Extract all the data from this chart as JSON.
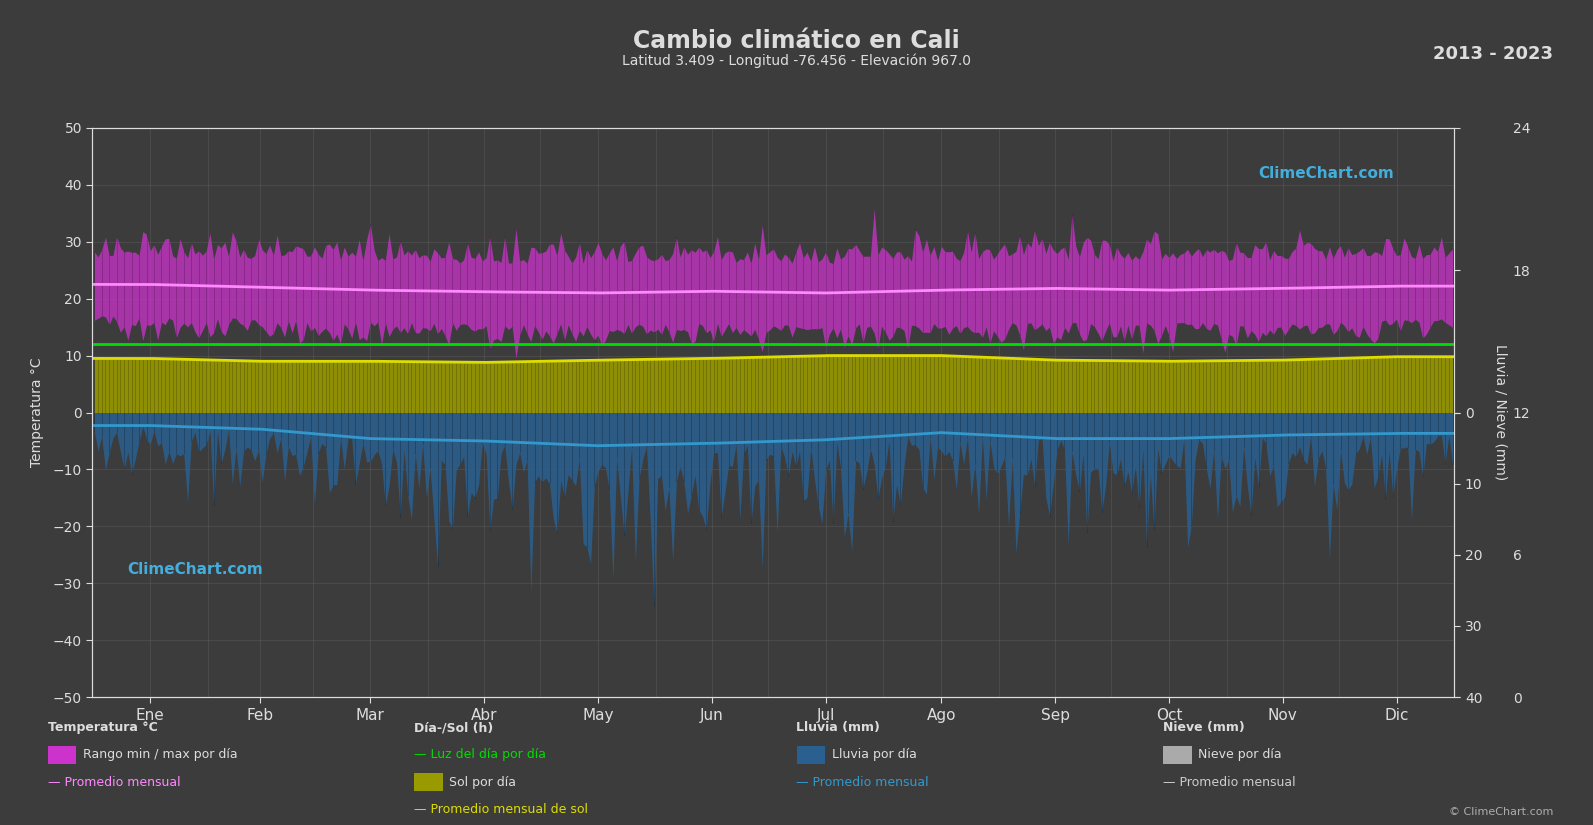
{
  "title": "Cambio climático en Cali",
  "subtitle": "Latitud 3.409 - Longitud -76.456 - Elevación 967.0",
  "year_range": "2013 - 2023",
  "bg_color": "#3c3c3c",
  "left_ylim": [
    -50,
    50
  ],
  "months": [
    "Ene",
    "Feb",
    "Mar",
    "Abr",
    "May",
    "Jun",
    "Jul",
    "Ago",
    "Sep",
    "Oct",
    "Nov",
    "Dic"
  ],
  "temp_avg_monthly": [
    22.5,
    22.0,
    21.5,
    21.2,
    21.0,
    21.3,
    21.0,
    21.5,
    21.8,
    21.5,
    21.8,
    22.2
  ],
  "temp_max_daily_std": 2.5,
  "temp_min_daily_std": 2.0,
  "temp_max_monthly": [
    27.0,
    26.8,
    26.5,
    26.2,
    26.0,
    26.2,
    26.0,
    26.5,
    26.8,
    26.5,
    26.8,
    27.0
  ],
  "temp_min_monthly": [
    17.0,
    16.5,
    16.0,
    15.8,
    15.5,
    15.8,
    15.5,
    15.8,
    16.0,
    15.8,
    16.0,
    16.5
  ],
  "daylight_monthly": [
    12.1,
    12.1,
    12.1,
    12.1,
    12.1,
    12.1,
    12.1,
    12.1,
    12.1,
    12.1,
    12.1,
    12.1
  ],
  "sun_monthly": [
    9.5,
    9.0,
    9.0,
    8.8,
    9.2,
    9.5,
    10.0,
    10.0,
    9.2,
    9.0,
    9.2,
    9.8
  ],
  "rain_mm_monthly": [
    55,
    70,
    110,
    120,
    140,
    130,
    115,
    85,
    110,
    110,
    95,
    88
  ],
  "rain_scale": 1.25,
  "copyright": "© ClimeChart.com",
  "logo_text": "ClimeChart.com",
  "text_color": "#dddddd",
  "grid_color": "#666666",
  "magenta_bar_color": "#cc33cc",
  "yellow_bar_color": "#999900",
  "blue_bar_color": "#2a6090",
  "green_line_color": "#00dd00",
  "yellow_line_color": "#dddd00",
  "pink_line_color": "#ff88ff",
  "cyan_line_color": "#3399cc",
  "days_per_month": [
    31,
    28,
    31,
    30,
    31,
    30,
    31,
    31,
    30,
    31,
    30,
    31
  ]
}
